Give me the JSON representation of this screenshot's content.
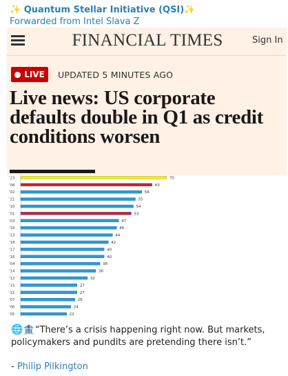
{
  "post": {
    "channel": "✨ Quantum Stellar Initiative (QSI)✨",
    "forwarded": "Forwarded from Intel Slava Z",
    "quote_icons": "🌐🏦",
    "quote": "“There’s a crisis happening right now. But markets, policymakers and pundits are pretending there isn’t.”",
    "attribution_prefix": "- ",
    "author": "Philip Pilkington"
  },
  "ft": {
    "masthead": "FINANCIAL TIMES",
    "signin": "Sign In",
    "live_label": "LIVE",
    "updated": "UPDATED 5 MINUTES AGO",
    "headline": "Live news: US corporate defaults double in Q1 as credit conditions worsen"
  },
  "colors": {
    "ft_background": "#fff1e5",
    "live_red": "#cc0000",
    "bar_blue": "#2b9ad6",
    "bar_yellow": "#f3ec2c",
    "bar_red": "#d01f2e",
    "link_blue": "#2c7fb8"
  },
  "chart_data": {
    "type": "bar",
    "orientation": "horizontal",
    "categories": [
      "'09",
      "'23",
      "'08",
      "'02",
      "'21",
      "'10",
      "'01",
      "'03",
      "'19",
      "'13",
      "'18",
      "'17",
      "'16",
      "'04",
      "'14",
      "'12",
      "'15",
      "'11",
      "'07",
      "'06",
      "'05"
    ],
    "values": [
      72,
      70,
      63,
      58,
      55,
      54,
      53,
      47,
      46,
      44,
      42,
      40,
      40,
      38,
      36,
      32,
      27,
      27,
      26,
      24,
      22
    ],
    "highlight": {
      "'23": "yellow",
      "'08": "red",
      "'01": "red"
    },
    "title": "",
    "xlabel": "",
    "ylabel": "",
    "xlim": [
      0,
      72
    ],
    "note": ""
  }
}
